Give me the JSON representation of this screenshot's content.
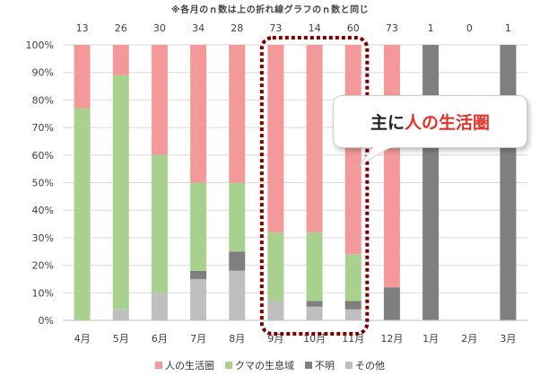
{
  "chart_data": {
    "type": "bar",
    "stacked": true,
    "note": "※各月のｎ数は上の折れ線グラフのｎ数と同じ",
    "categories": [
      "4月",
      "5月",
      "6月",
      "7月",
      "8月",
      "9月",
      "10月",
      "11月",
      "12月",
      "1月",
      "2月",
      "3月"
    ],
    "n_values": [
      "13",
      "26",
      "30",
      "34",
      "28",
      "73",
      "14",
      "60",
      "73",
      "1",
      "0",
      "1"
    ],
    "y_ticks": [
      "0%",
      "10%",
      "20%",
      "30%",
      "40%",
      "50%",
      "60%",
      "70%",
      "80%",
      "90%",
      "100%"
    ],
    "ylim": [
      0,
      100
    ],
    "grid": true,
    "legend_position": "bottom",
    "series": [
      {
        "name": "その他",
        "color": "#bfbfbf",
        "values": [
          0,
          4,
          10,
          15,
          18,
          7,
          5,
          4,
          0,
          0,
          0,
          0
        ]
      },
      {
        "name": "不明",
        "color": "#7f7f7f",
        "values": [
          0,
          0,
          0,
          3,
          7,
          0,
          2,
          3,
          12,
          100,
          0,
          100
        ]
      },
      {
        "name": "クマの生息域",
        "color": "#a9d18e",
        "values": [
          77,
          85,
          50,
          32,
          25,
          25,
          25,
          17,
          0,
          0,
          0,
          0
        ]
      },
      {
        "name": "人の生活圏",
        "color": "#f4999a",
        "values": [
          23,
          11,
          40,
          50,
          50,
          68,
          68,
          76,
          88,
          0,
          0,
          0
        ]
      }
    ],
    "legend_order": [
      "人の生活圏",
      "クマの生息域",
      "不明",
      "その他"
    ],
    "highlight": {
      "categories": [
        "9月",
        "10月",
        "11月"
      ],
      "color": "#7a0000"
    }
  },
  "callout": {
    "part1": "主に",
    "part2": "人の生活圏"
  }
}
